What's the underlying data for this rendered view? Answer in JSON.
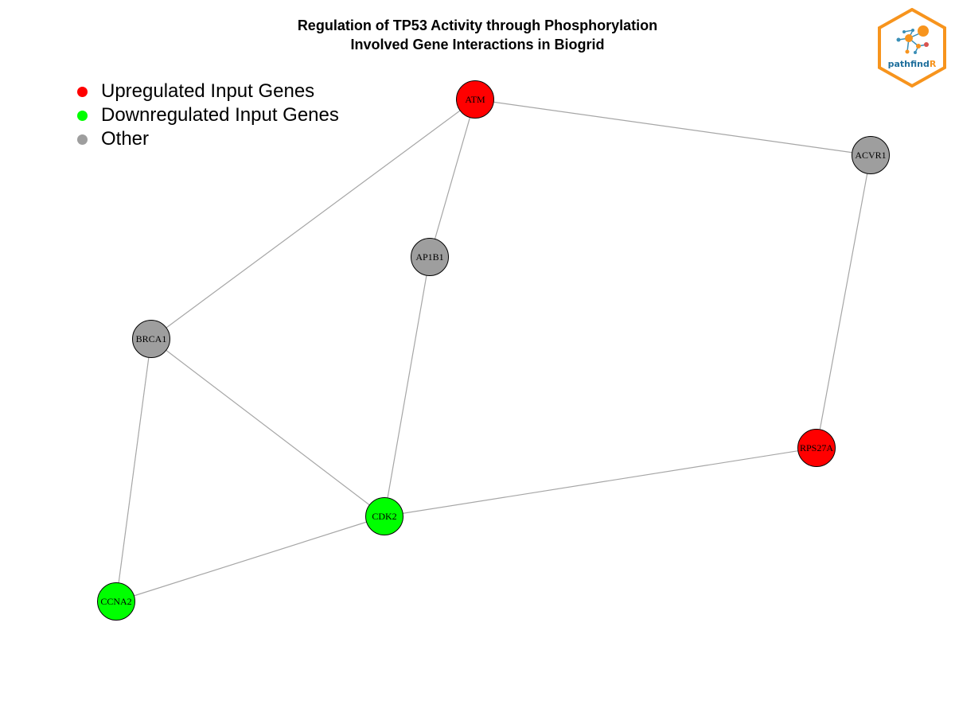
{
  "title": {
    "line1": "Regulation of TP53 Activity through Phosphorylation",
    "line2": "Involved Gene Interactions in Biogrid"
  },
  "legend": [
    {
      "label": "Upregulated Input Genes",
      "color": "#ff0000"
    },
    {
      "label": "Downregulated Input Genes",
      "color": "#00ff00"
    },
    {
      "label": "Other",
      "color": "#9e9e9e"
    }
  ],
  "logo": {
    "text_main": "pathfind",
    "text_accent": "R",
    "icon": "pathfindr-hex-logo"
  },
  "graph": {
    "nodes": [
      {
        "id": "ATM",
        "label": "ATM",
        "status": "up",
        "color": "#ff0000"
      },
      {
        "id": "ACVR1",
        "label": "ACVR1",
        "status": "other",
        "color": "#9e9e9e"
      },
      {
        "id": "AP1B1",
        "label": "AP1B1",
        "status": "other",
        "color": "#9e9e9e"
      },
      {
        "id": "BRCA1",
        "label": "BRCA1",
        "status": "other",
        "color": "#9e9e9e"
      },
      {
        "id": "RPS27A",
        "label": "RPS27A",
        "status": "up",
        "color": "#ff0000"
      },
      {
        "id": "CDK2",
        "label": "CDK2",
        "status": "down",
        "color": "#00ff00"
      },
      {
        "id": "CCNA2",
        "label": "CCNA2",
        "status": "down",
        "color": "#00ff00"
      }
    ],
    "edges": [
      [
        "ATM",
        "ACVR1"
      ],
      [
        "ATM",
        "AP1B1"
      ],
      [
        "ATM",
        "BRCA1"
      ],
      [
        "ACVR1",
        "RPS27A"
      ],
      [
        "AP1B1",
        "CDK2"
      ],
      [
        "BRCA1",
        "CDK2"
      ],
      [
        "BRCA1",
        "CCNA2"
      ],
      [
        "RPS27A",
        "CDK2"
      ],
      [
        "CDK2",
        "CCNA2"
      ]
    ]
  }
}
